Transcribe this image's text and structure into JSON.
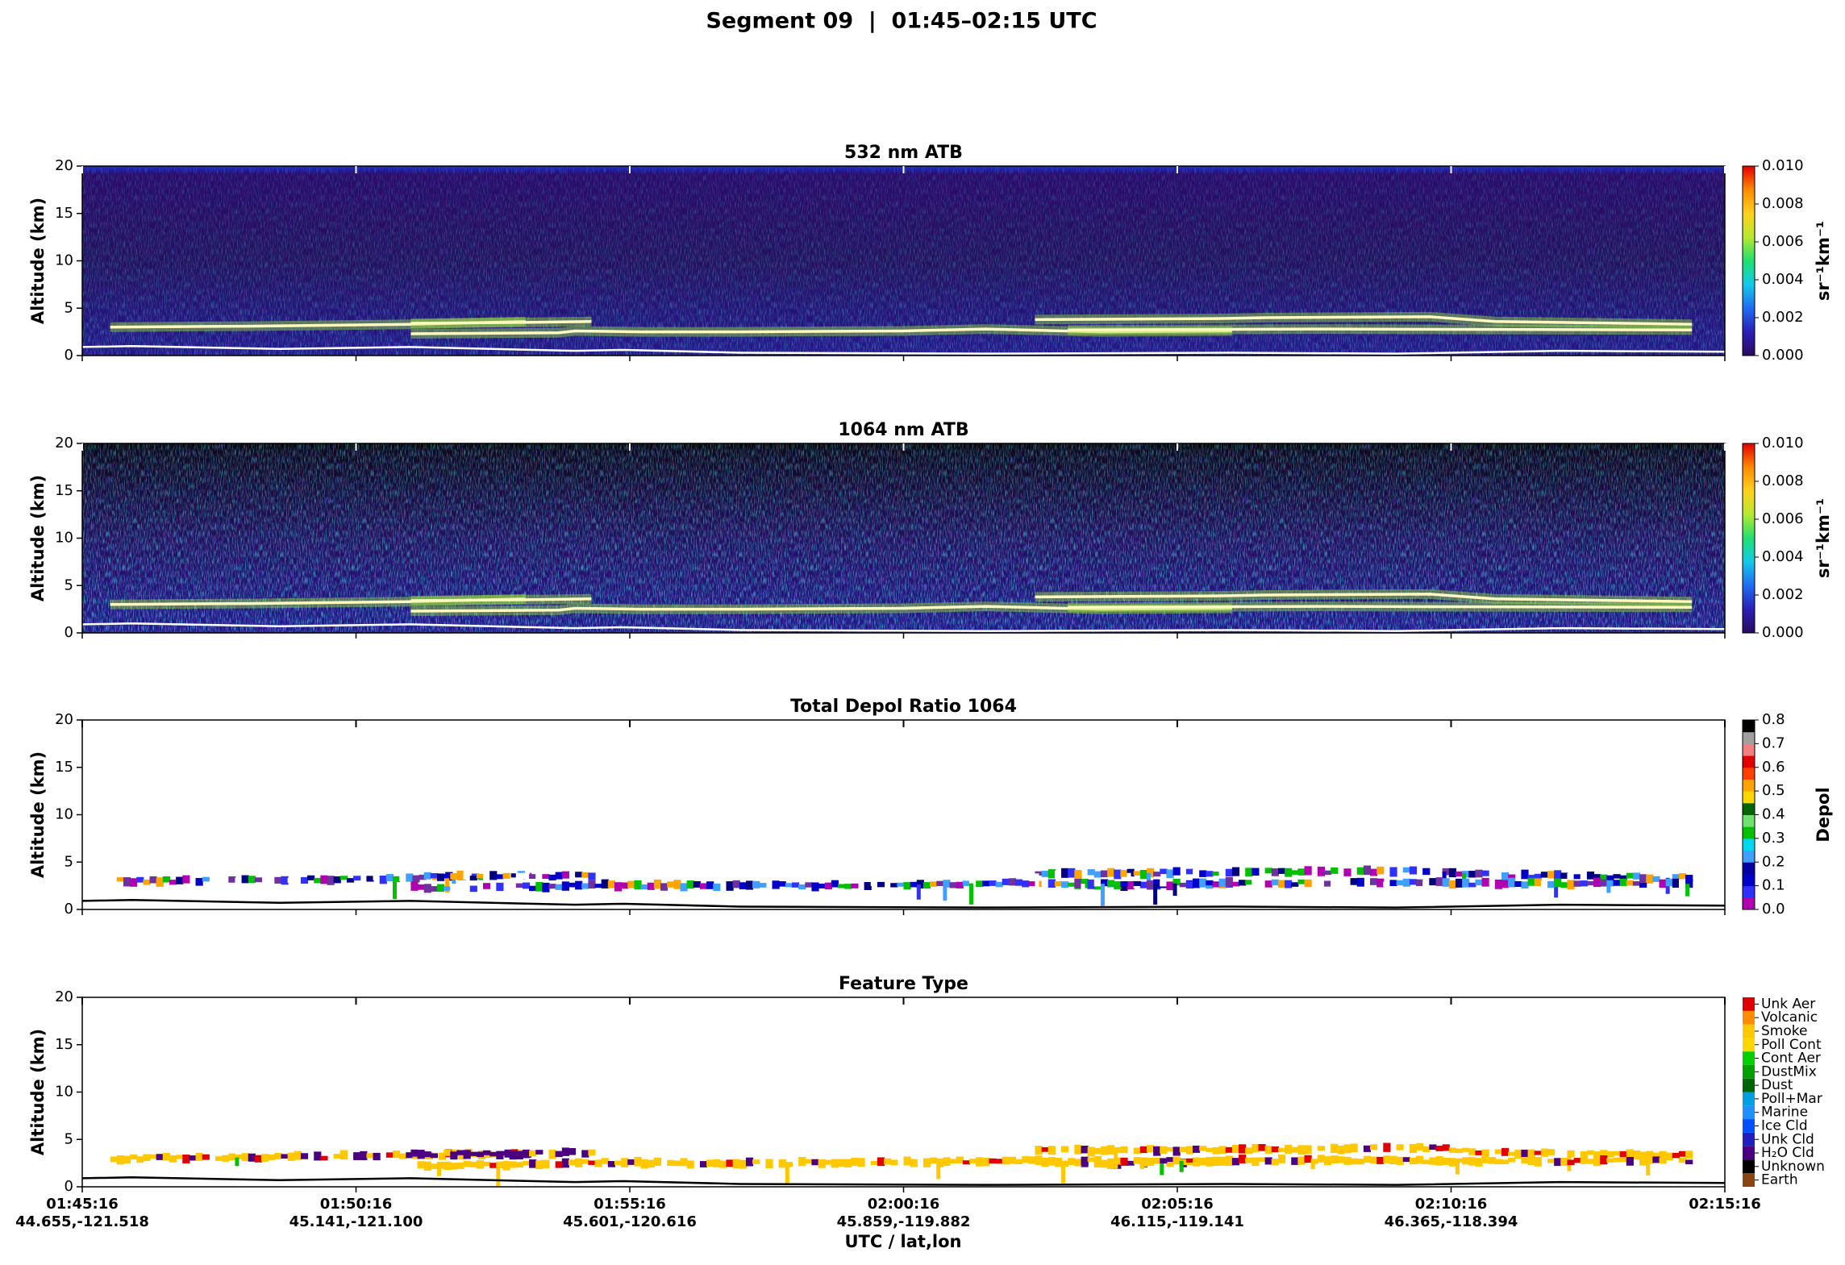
{
  "figure_title": "Segment 09  |  01:45–02:15 UTC",
  "x_label": "UTC / lat,lon",
  "chart_data": [
    {
      "type": "curtain",
      "title": "532 nm ATB",
      "ylabel": "Altitude (km)",
      "ylim": [
        0,
        20
      ],
      "yticks": [
        0,
        5,
        10,
        15,
        20
      ],
      "colorbar": {
        "label": "sr⁻¹km⁻¹",
        "lim": [
          0,
          0.01
        ],
        "ticks": [
          {
            "value": 0,
            "label": "0.000"
          },
          {
            "value": 0.002,
            "label": "0.002"
          },
          {
            "value": 0.004,
            "label": "0.004"
          },
          {
            "value": 0.006,
            "label": "0.006"
          },
          {
            "value": 0.008,
            "label": "0.008"
          },
          {
            "value": 0.01,
            "label": "0.010"
          }
        ],
        "colors": [
          "#2a0a5e",
          "#2b1fb5",
          "#1f6cf0",
          "#14c8e8",
          "#20e070",
          "#b8e830",
          "#ffd21f",
          "#ff8a00",
          "#e00000"
        ]
      }
    },
    {
      "type": "curtain",
      "title": "1064 nm ATB",
      "ylabel": "Altitude (km)",
      "ylim": [
        0,
        20
      ],
      "yticks": [
        0,
        5,
        10,
        15,
        20
      ],
      "colorbar": {
        "label": "sr⁻¹km⁻¹",
        "lim": [
          0,
          0.01
        ],
        "ticks": [
          {
            "value": 0,
            "label": "0.000"
          },
          {
            "value": 0.002,
            "label": "0.002"
          },
          {
            "value": 0.004,
            "label": "0.004"
          },
          {
            "value": 0.006,
            "label": "0.006"
          },
          {
            "value": 0.008,
            "label": "0.008"
          },
          {
            "value": 0.01,
            "label": "0.010"
          }
        ],
        "colors": [
          "#2a0a5e",
          "#2b1fb5",
          "#1f6cf0",
          "#14c8e8",
          "#20e070",
          "#b8e830",
          "#ffd21f",
          "#ff8a00",
          "#e00000"
        ]
      }
    },
    {
      "type": "mask",
      "title": "Total Depol Ratio 1064",
      "ylabel": "Altitude (km)",
      "ylim": [
        0,
        20
      ],
      "yticks": [
        0,
        5,
        10,
        15,
        20
      ],
      "colorbar": {
        "label": "Depol",
        "lim": [
          0,
          0.8
        ],
        "ticks": [
          {
            "value": 0,
            "label": "0.0"
          },
          {
            "value": 0.1,
            "label": "0.1"
          },
          {
            "value": 0.2,
            "label": "0.2"
          },
          {
            "value": 0.3,
            "label": "0.3"
          },
          {
            "value": 0.4,
            "label": "0.4"
          },
          {
            "value": 0.5,
            "label": "0.5"
          },
          {
            "value": 0.6,
            "label": "0.6"
          },
          {
            "value": 0.7,
            "label": "0.7"
          },
          {
            "value": 0.8,
            "label": "0.8"
          }
        ],
        "colors": [
          "#b000b0",
          "#3030ff",
          "#0000c8",
          "#0000a0",
          "#40a0ff",
          "#00d8f0",
          "#00c000",
          "#70e070",
          "#006400",
          "#ffd700",
          "#ffa500",
          "#ff4000",
          "#e00000",
          "#f08080",
          "#a0a0a0",
          "#000000"
        ]
      }
    },
    {
      "type": "mask",
      "title": "Feature Type",
      "ylabel": "Altitude (km)",
      "ylim": [
        0,
        20
      ],
      "yticks": [
        0,
        5,
        10,
        15,
        20
      ],
      "xlim": [
        0,
        30
      ],
      "xticks": [
        {
          "value": 0,
          "label": "01:45:16"
        },
        {
          "value": 5,
          "label": "01:50:16"
        },
        {
          "value": 10,
          "label": "01:55:16"
        },
        {
          "value": 15,
          "label": "02:00:16"
        },
        {
          "value": 20,
          "label": "02:05:16"
        },
        {
          "value": 25,
          "label": "02:10:16"
        },
        {
          "value": 30,
          "label": "02:15:16"
        }
      ],
      "xtick_coords": [
        "44.655,-121.518",
        "45.141,-121.100",
        "45.601,-120.616",
        "45.859,-119.882",
        "46.115,-119.141",
        "46.365,-118.394",
        ""
      ],
      "colorbar": {
        "categories": [
          "Earth",
          "Unknown",
          "H₂O Cld",
          "Unk Cld",
          "Ice Cld",
          "Marine",
          "Poll+Mar",
          "Dust",
          "DustMix",
          "Cont Aer",
          "Poll Cont",
          "Smoke",
          "Volcanic",
          "Unk Aer"
        ],
        "colors": [
          "#8b4513",
          "#000000",
          "#4b0082",
          "#2020c0",
          "#0050ff",
          "#1e90ff",
          "#00a0e0",
          "#006400",
          "#00a000",
          "#00d000",
          "#ffd700",
          "#ffc800",
          "#ff8c00",
          "#e00000"
        ]
      }
    }
  ]
}
